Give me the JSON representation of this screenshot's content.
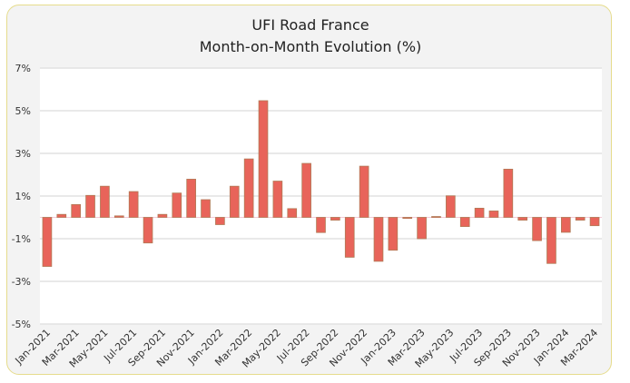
{
  "chart_data": {
    "type": "bar",
    "title": "UFI Road France",
    "subtitle": "Month-on-Month Evolution (%)",
    "xlabel": "",
    "ylabel": "",
    "ylim": [
      -5,
      7
    ],
    "yticks": [
      7,
      5,
      3,
      1,
      -1,
      -3,
      -5
    ],
    "ytick_labels": [
      "7%",
      "5%",
      "3%",
      "1%",
      "-1%",
      "-3%",
      "-5%"
    ],
    "grid": true,
    "bar_color": "#e8645a",
    "categories": [
      "Jan-2021",
      "Feb-2021",
      "Mar-2021",
      "Apr-2021",
      "May-2021",
      "Jun-2021",
      "Jul-2021",
      "Aug-2021",
      "Sep-2021",
      "Oct-2021",
      "Nov-2021",
      "Dec-2021",
      "Jan-2022",
      "Feb-2022",
      "Mar-2022",
      "Apr-2022",
      "May-2022",
      "Jun-2022",
      "Jul-2022",
      "Aug-2022",
      "Sep-2022",
      "Oct-2022",
      "Nov-2022",
      "Dec-2022",
      "Jan-2023",
      "Feb-2023",
      "Mar-2023",
      "Apr-2023",
      "May-2023",
      "Jun-2023",
      "Jul-2023",
      "Aug-2023",
      "Sep-2023",
      "Oct-2023",
      "Nov-2023",
      "Dec-2023",
      "Jan-2024",
      "Feb-2024",
      "Mar-2024"
    ],
    "values": [
      -2.3,
      0.14,
      0.6,
      1.03,
      1.46,
      0.07,
      1.21,
      -1.2,
      0.14,
      1.14,
      1.79,
      0.83,
      -0.34,
      1.46,
      2.74,
      5.47,
      1.7,
      0.41,
      2.53,
      -0.71,
      -0.13,
      -1.87,
      2.4,
      -2.06,
      -1.54,
      -0.05,
      -1.0,
      0.04,
      1.01,
      -0.43,
      0.43,
      0.3,
      2.26,
      -0.13,
      -1.09,
      -2.16,
      -0.7,
      -0.13,
      -0.39
    ],
    "xtick_labels": [
      "Jan-2021",
      "Mar-2021",
      "May-2021",
      "Jul-2021",
      "Sep-2021",
      "Nov-2021",
      "Jan-2022",
      "Mar-2022",
      "May-2022",
      "Jul-2022",
      "Sep-2022",
      "Nov-2022",
      "Jan-2023",
      "Mar-2023",
      "May-2023",
      "Jul-2023",
      "Sep-2023",
      "Nov-2023",
      "Jan-2024",
      "Mar-2024"
    ]
  }
}
